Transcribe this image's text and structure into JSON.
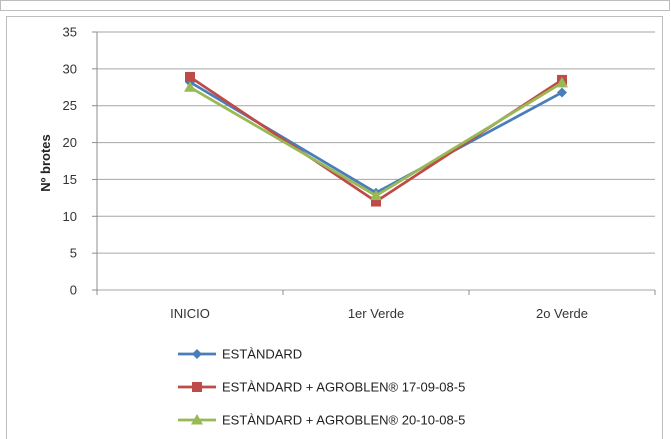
{
  "chart_data": {
    "type": "line",
    "title": "",
    "xlabel": "",
    "ylabel": "Nº brotes",
    "categories": [
      "INICIO",
      "1er Verde",
      "2o Verde"
    ],
    "ylim": [
      0,
      35
    ],
    "yticks": [
      0,
      5,
      10,
      15,
      20,
      25,
      30,
      35
    ],
    "grid": true,
    "legend": "bottom",
    "series": [
      {
        "name": "ESTÀNDARD",
        "values": [
          28.2,
          13.2,
          26.8
        ],
        "color": "#4a7ebb",
        "marker": "diamond"
      },
      {
        "name": "ESTÀNDARD + AGROBLEN® 17-09-08-5",
        "values": [
          28.9,
          12.0,
          28.5
        ],
        "color": "#be4b48",
        "marker": "square"
      },
      {
        "name": "ESTÀNDARD + AGROBLEN® 20-10-08-5",
        "values": [
          27.5,
          12.8,
          28.1
        ],
        "color": "#98b954",
        "marker": "triangle"
      }
    ]
  }
}
